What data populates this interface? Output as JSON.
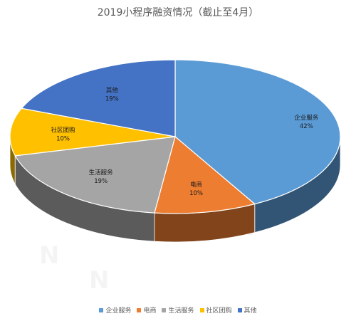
{
  "chart_data": {
    "type": "pie",
    "title": "2019小程序融资情况（截止至4月）",
    "categories": [
      "企业服务",
      "电商",
      "生活服务",
      "社区团购",
      "其他"
    ],
    "values": [
      42,
      10,
      19,
      10,
      19
    ],
    "value_labels": [
      "42%",
      "10%",
      "19%",
      "10%",
      "19%"
    ],
    "colors": [
      "#5B9BD5",
      "#ED7D31",
      "#A5A5A5",
      "#FFC000",
      "#4472C4"
    ],
    "legend_position": "bottom",
    "style": "3d"
  }
}
